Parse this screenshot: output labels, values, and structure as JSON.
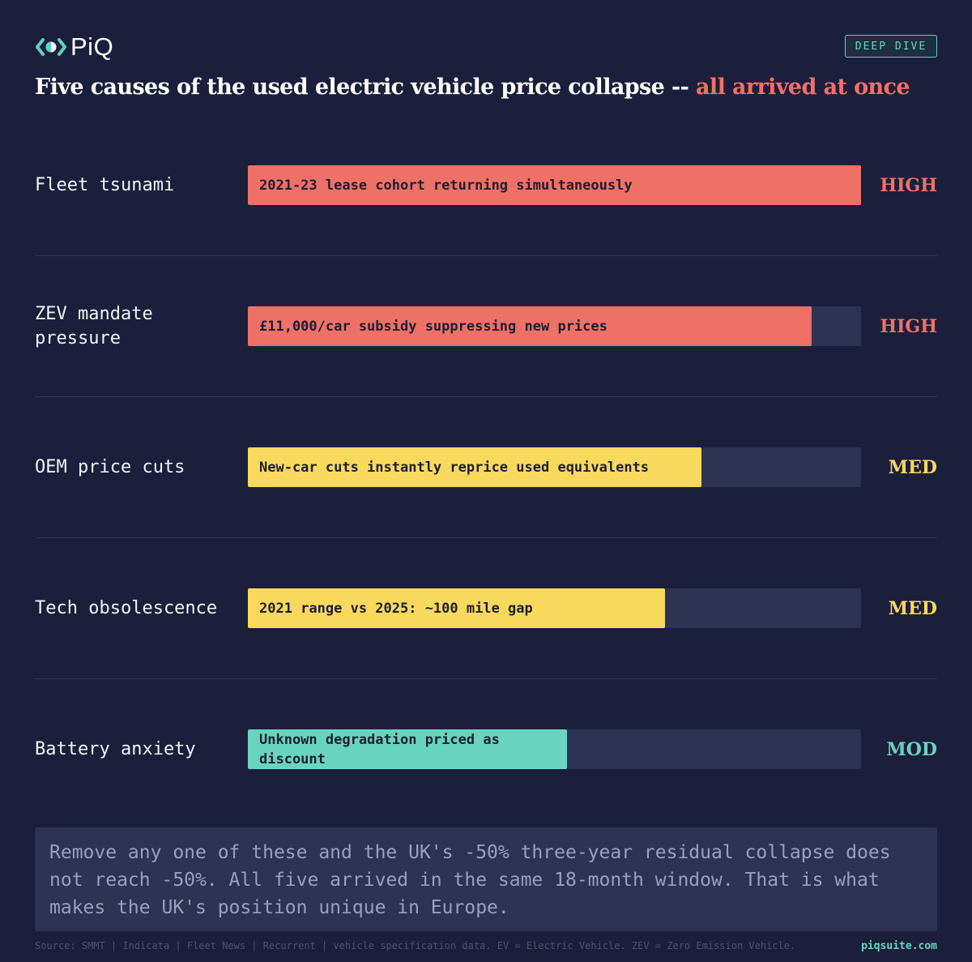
{
  "brand": {
    "name": "PiQ",
    "badge": "DEEP DIVE",
    "site": "piqsuite.com"
  },
  "title": {
    "main": "Five causes of the used electric vehicle price collapse --",
    "accent": "all arrived at once"
  },
  "colors": {
    "high": "#ee7168",
    "med": "#f8d95c",
    "mod": "#68d4c0",
    "track": "#2e3353",
    "background": "#1c1f3b"
  },
  "chart_data": {
    "type": "bar",
    "orientation": "horizontal",
    "xlim": [
      0,
      1
    ],
    "categories": [
      "Fleet tsunami",
      "ZEV mandate pressure",
      "OEM price cuts",
      "Tech obsolescence",
      "Battery anxiety"
    ],
    "values": [
      1.0,
      0.92,
      0.74,
      0.68,
      0.52
    ],
    "bar_labels": [
      "2021-23 lease cohort returning simultaneously",
      "£11,000/car subsidy suppressing new prices",
      "New-car cuts instantly reprice used equivalents",
      "2021 range vs 2025: ~100 mile gap",
      "Unknown degradation priced as discount"
    ],
    "severity": [
      "HIGH",
      "HIGH",
      "MED",
      "MED",
      "MOD"
    ]
  },
  "note": "Remove any one of these and the UK's -50% three-year residual collapse does not reach -50%. All five arrived in the same 18-month window. That is what makes the UK's position unique in Europe.",
  "source": "Source: SMMT | Indicata | Fleet News | Recurrent | vehicle specification data. EV = Electric Vehicle. ZEV = Zero Emission Vehicle."
}
